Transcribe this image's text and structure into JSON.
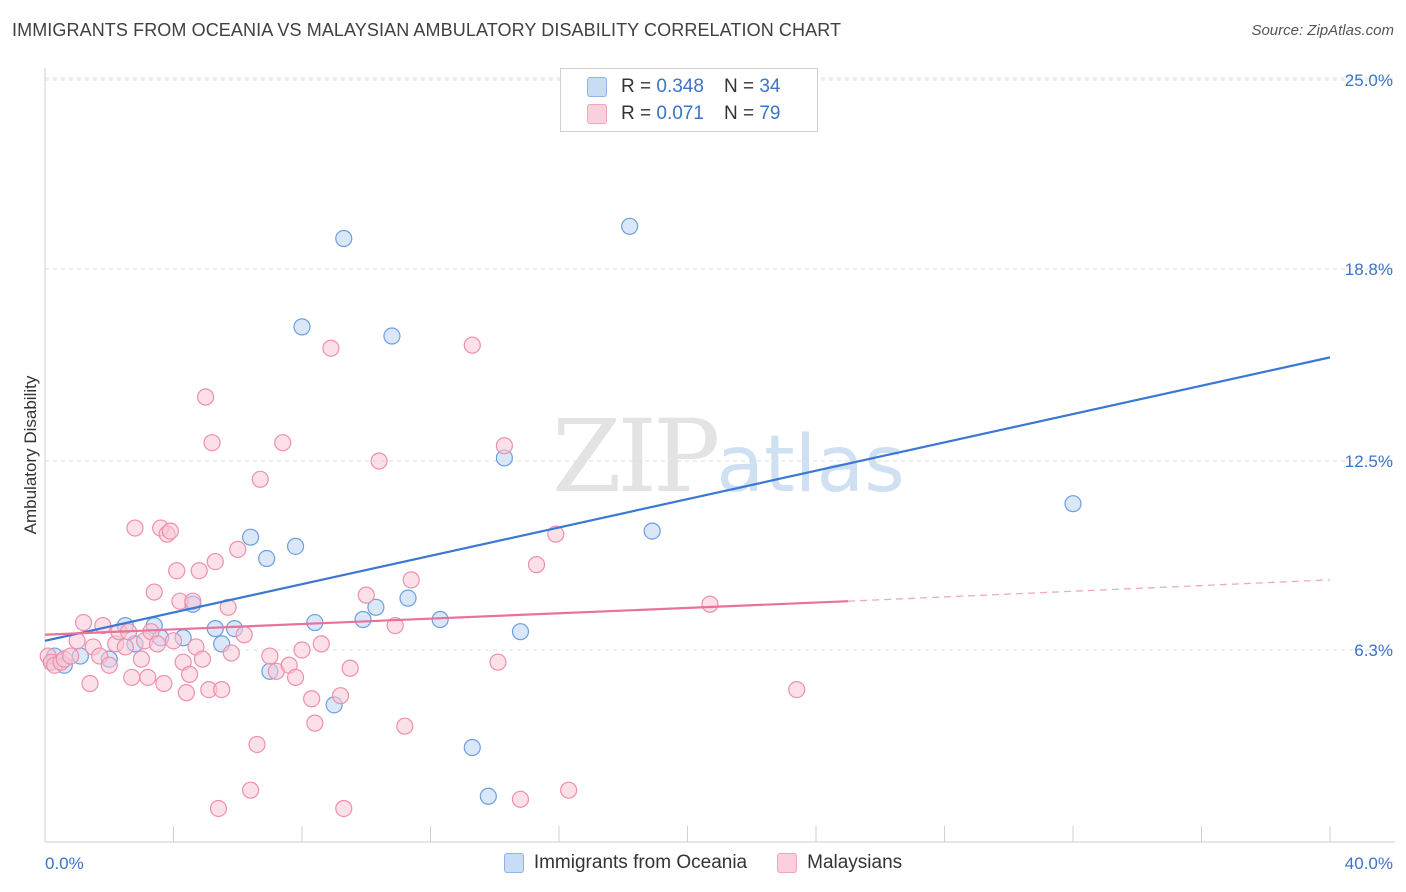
{
  "title": "IMMIGRANTS FROM OCEANIA VS MALAYSIAN AMBULATORY DISABILITY CORRELATION CHART",
  "source": "Source: ZipAtlas.com",
  "watermark": {
    "zip": "ZIP",
    "atlas": "atlas"
  },
  "legend": {
    "rows": [
      {
        "r_label": "R =",
        "r_value": "0.348",
        "n_label": "N =",
        "n_value": "34",
        "color": "#a9c8f0"
      },
      {
        "r_label": "R =",
        "r_value": "0.071",
        "n_label": "N =",
        "n_value": "79",
        "color": "#f6b8cb"
      }
    ]
  },
  "bottom_legend": [
    {
      "label": "Immigrants from Oceania",
      "color": "#a9c8f0"
    },
    {
      "label": "Malaysians",
      "color": "#f6b8cb"
    }
  ],
  "chart_data": {
    "type": "scatter",
    "ylabel": "Ambulatory Disability",
    "x_tick_labels": [
      "0.0%",
      "40.0%"
    ],
    "y_tick_labels": [
      "25.0%",
      "18.8%",
      "12.5%",
      "6.3%"
    ],
    "y_ticks": [
      25.0,
      18.8,
      12.5,
      6.3
    ],
    "xlim": [
      0,
      40
    ],
    "ylim": [
      0,
      25
    ],
    "grid": true,
    "series": [
      {
        "name": "Immigrants from Oceania",
        "color": "#6b9fe0",
        "fill": "#bcd4f4",
        "points": [
          [
            0.2,
            5.9
          ],
          [
            0.3,
            6.1
          ],
          [
            0.6,
            5.8
          ],
          [
            1.1,
            6.1
          ],
          [
            2.0,
            6.0
          ],
          [
            2.5,
            7.1
          ],
          [
            2.8,
            6.5
          ],
          [
            3.4,
            7.1
          ],
          [
            3.6,
            6.7
          ],
          [
            4.3,
            6.7
          ],
          [
            4.6,
            7.8
          ],
          [
            5.3,
            7.0
          ],
          [
            5.5,
            6.5
          ],
          [
            5.9,
            7.0
          ],
          [
            6.4,
            10.0
          ],
          [
            6.9,
            9.3
          ],
          [
            7.0,
            5.6
          ],
          [
            7.8,
            9.7
          ],
          [
            8.0,
            16.9
          ],
          [
            8.4,
            7.2
          ],
          [
            9.0,
            4.5
          ],
          [
            9.3,
            19.8
          ],
          [
            9.9,
            7.3
          ],
          [
            10.3,
            7.7
          ],
          [
            10.8,
            16.6
          ],
          [
            11.3,
            8.0
          ],
          [
            12.3,
            7.3
          ],
          [
            13.3,
            3.1
          ],
          [
            13.8,
            1.5
          ],
          [
            14.3,
            12.6
          ],
          [
            14.8,
            6.9
          ],
          [
            18.2,
            20.2
          ],
          [
            18.9,
            10.2
          ],
          [
            32.0,
            11.1
          ]
        ],
        "trend": {
          "x": [
            0,
            40
          ],
          "y": [
            6.6,
            15.9
          ]
        }
      },
      {
        "name": "Malaysians",
        "color": "#ef8fac",
        "fill": "#f8c6d5",
        "points": [
          [
            0.1,
            6.1
          ],
          [
            0.2,
            5.9
          ],
          [
            0.3,
            5.8
          ],
          [
            0.5,
            5.9
          ],
          [
            0.6,
            6.0
          ],
          [
            0.8,
            6.1
          ],
          [
            1.0,
            6.6
          ],
          [
            1.2,
            7.2
          ],
          [
            1.4,
            5.2
          ],
          [
            1.5,
            6.4
          ],
          [
            1.7,
            6.1
          ],
          [
            1.8,
            7.1
          ],
          [
            2.0,
            5.8
          ],
          [
            2.2,
            6.5
          ],
          [
            2.3,
            6.9
          ],
          [
            2.5,
            6.4
          ],
          [
            2.6,
            6.9
          ],
          [
            2.7,
            5.4
          ],
          [
            2.8,
            10.3
          ],
          [
            3.0,
            6.0
          ],
          [
            3.1,
            6.6
          ],
          [
            3.2,
            5.4
          ],
          [
            3.3,
            6.9
          ],
          [
            3.4,
            8.2
          ],
          [
            3.5,
            6.5
          ],
          [
            3.6,
            10.3
          ],
          [
            3.7,
            5.2
          ],
          [
            3.8,
            10.1
          ],
          [
            3.9,
            10.2
          ],
          [
            4.0,
            6.6
          ],
          [
            4.1,
            8.9
          ],
          [
            4.2,
            7.9
          ],
          [
            4.3,
            5.9
          ],
          [
            4.4,
            4.9
          ],
          [
            4.5,
            5.5
          ],
          [
            4.6,
            7.9
          ],
          [
            4.7,
            6.4
          ],
          [
            4.8,
            8.9
          ],
          [
            4.9,
            6.0
          ],
          [
            5.0,
            14.6
          ],
          [
            5.1,
            5.0
          ],
          [
            5.2,
            13.1
          ],
          [
            5.3,
            9.2
          ],
          [
            5.4,
            1.1
          ],
          [
            5.5,
            5.0
          ],
          [
            5.7,
            7.7
          ],
          [
            5.8,
            6.2
          ],
          [
            6.0,
            9.6
          ],
          [
            6.2,
            6.8
          ],
          [
            6.4,
            1.7
          ],
          [
            6.6,
            3.2
          ],
          [
            6.7,
            11.9
          ],
          [
            7.0,
            6.1
          ],
          [
            7.2,
            5.6
          ],
          [
            7.4,
            13.1
          ],
          [
            7.6,
            5.8
          ],
          [
            7.8,
            5.4
          ],
          [
            8.0,
            6.3
          ],
          [
            8.3,
            4.7
          ],
          [
            8.4,
            3.9
          ],
          [
            8.6,
            6.5
          ],
          [
            8.9,
            16.2
          ],
          [
            9.2,
            4.8
          ],
          [
            9.3,
            1.1
          ],
          [
            9.5,
            5.7
          ],
          [
            10.0,
            8.1
          ],
          [
            10.4,
            12.5
          ],
          [
            10.9,
            7.1
          ],
          [
            11.2,
            3.8
          ],
          [
            11.4,
            8.6
          ],
          [
            13.3,
            16.3
          ],
          [
            14.1,
            5.9
          ],
          [
            14.3,
            13.0
          ],
          [
            14.8,
            1.4
          ],
          [
            15.3,
            9.1
          ],
          [
            15.9,
            10.1
          ],
          [
            16.3,
            1.7
          ],
          [
            20.7,
            7.8
          ],
          [
            23.4,
            5.0
          ]
        ],
        "trend": {
          "x": [
            0,
            25
          ],
          "y": [
            6.8,
            7.9
          ]
        },
        "trend_dashed": {
          "x": [
            25,
            40
          ],
          "y": [
            7.9,
            8.6
          ]
        }
      }
    ]
  }
}
